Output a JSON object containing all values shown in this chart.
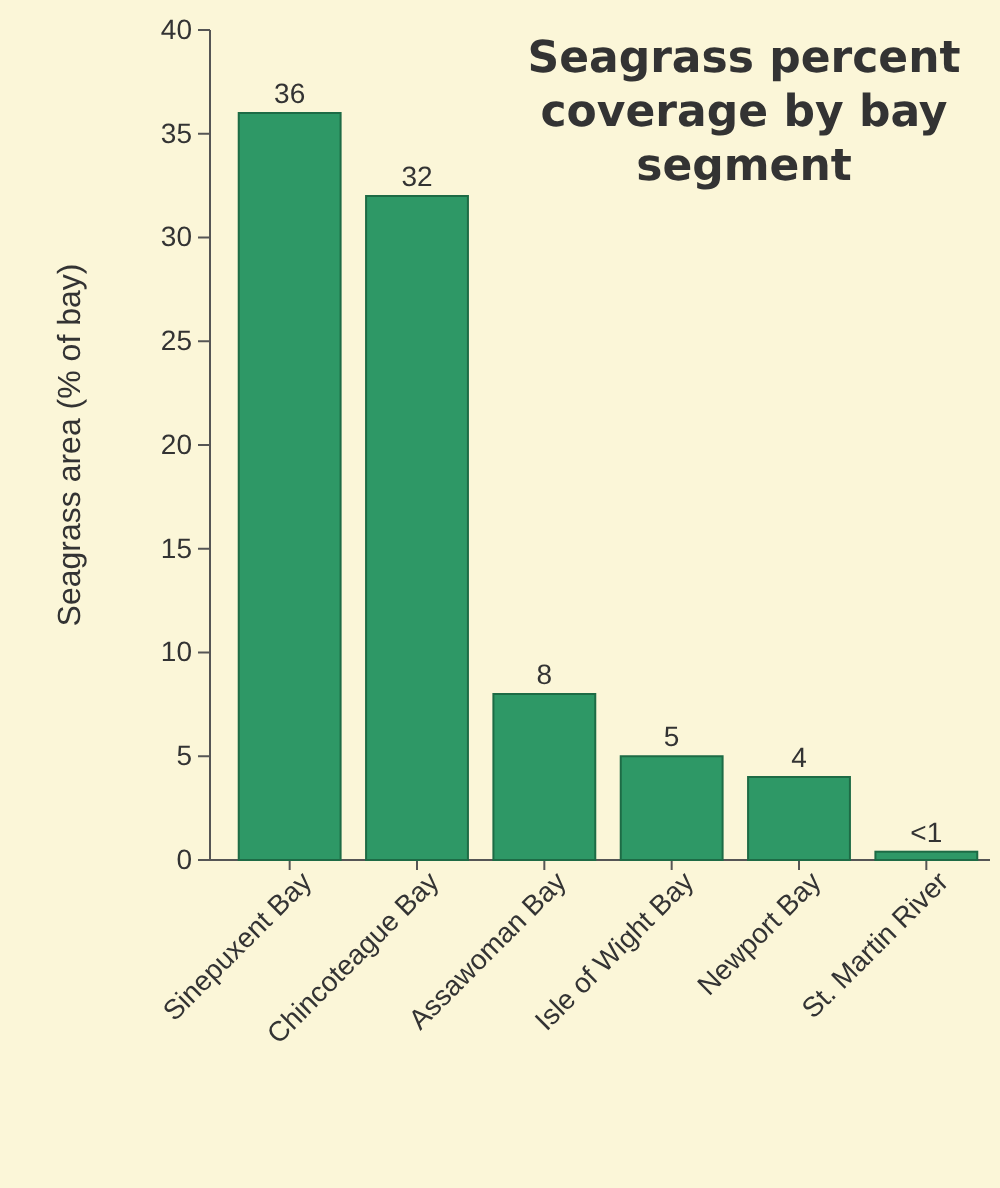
{
  "chart_data": {
    "type": "bar",
    "title": "Seagrass percent coverage by bay segment",
    "ylabel": "Seagrass area (% of bay)",
    "categories": [
      "Sinepuxent Bay",
      "Chincoteague Bay",
      "Assawoman Bay",
      "Isle of Wight Bay",
      "Newport Bay",
      "St. Martin River"
    ],
    "values": [
      36,
      32,
      8,
      5,
      4,
      0.4
    ],
    "value_labels": [
      "36",
      "32",
      "8",
      "5",
      "4",
      "<1"
    ],
    "color": "#2e9866",
    "ylim": [
      0,
      40
    ],
    "yticks": [
      0,
      5,
      10,
      15,
      20,
      25,
      30,
      35,
      40
    ]
  }
}
